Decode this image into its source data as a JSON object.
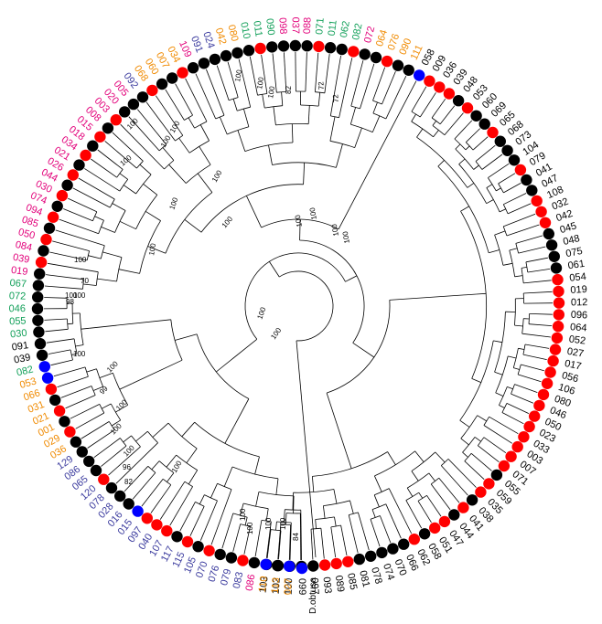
{
  "outgroup_label": "D.obtusa",
  "colors": {
    "black_label": "#000000",
    "pink_label": "#e2007a",
    "green_label": "#13a05a",
    "orange_label": "#f08a00",
    "blue_label": "#3b3b9e",
    "dot_black": "#000000",
    "dot_red": "#ff0000",
    "dot_blue": "#0000ff"
  },
  "tips": [
    {
      "label": "103",
      "color": "black",
      "dot": "black"
    },
    {
      "label": "102",
      "color": "black",
      "dot": "black"
    },
    {
      "label": "100",
      "color": "black",
      "dot": "black"
    },
    {
      "label": "099",
      "color": "black",
      "dot": "black"
    },
    {
      "label": "097",
      "color": "black",
      "dot": "black"
    },
    {
      "label": "093",
      "color": "black",
      "dot": "red"
    },
    {
      "label": "089",
      "color": "black",
      "dot": "red"
    },
    {
      "label": "085",
      "color": "black",
      "dot": "red"
    },
    {
      "label": "081",
      "color": "black",
      "dot": "black"
    },
    {
      "label": "078",
      "color": "black",
      "dot": "black"
    },
    {
      "label": "074",
      "color": "black",
      "dot": "black"
    },
    {
      "label": "070",
      "color": "black",
      "dot": "black"
    },
    {
      "label": "066",
      "color": "black",
      "dot": "black"
    },
    {
      "label": "062",
      "color": "black",
      "dot": "red"
    },
    {
      "label": "058",
      "color": "black",
      "dot": "black"
    },
    {
      "label": "051",
      "color": "black",
      "dot": "red"
    },
    {
      "label": "047",
      "color": "black",
      "dot": "red"
    },
    {
      "label": "044",
      "color": "black",
      "dot": "black"
    },
    {
      "label": "041",
      "color": "black",
      "dot": "red"
    },
    {
      "label": "038",
      "color": "black",
      "dot": "black"
    },
    {
      "label": "035",
      "color": "black",
      "dot": "red"
    },
    {
      "label": "059",
      "color": "black",
      "dot": "red"
    },
    {
      "label": "055",
      "color": "black",
      "dot": "black"
    },
    {
      "label": "071",
      "color": "black",
      "dot": "red"
    },
    {
      "label": "007",
      "color": "black",
      "dot": "red"
    },
    {
      "label": "003",
      "color": "black",
      "dot": "red"
    },
    {
      "label": "033",
      "color": "black",
      "dot": "red"
    },
    {
      "label": "023",
      "color": "black",
      "dot": "red"
    },
    {
      "label": "050",
      "color": "black",
      "dot": "red"
    },
    {
      "label": "046",
      "color": "black",
      "dot": "red"
    },
    {
      "label": "080",
      "color": "black",
      "dot": "red"
    },
    {
      "label": "106",
      "color": "black",
      "dot": "red"
    },
    {
      "label": "056",
      "color": "black",
      "dot": "red"
    },
    {
      "label": "017",
      "color": "black",
      "dot": "red"
    },
    {
      "label": "027",
      "color": "black",
      "dot": "red"
    },
    {
      "label": "052",
      "color": "black",
      "dot": "red"
    },
    {
      "label": "064",
      "color": "black",
      "dot": "red"
    },
    {
      "label": "096",
      "color": "black",
      "dot": "red"
    },
    {
      "label": "012",
      "color": "black",
      "dot": "red"
    },
    {
      "label": "019",
      "color": "black",
      "dot": "red"
    },
    {
      "label": "054",
      "color": "black",
      "dot": "red"
    },
    {
      "label": "061",
      "color": "black",
      "dot": "black"
    },
    {
      "label": "075",
      "color": "black",
      "dot": "black"
    },
    {
      "label": "048",
      "color": "black",
      "dot": "black"
    },
    {
      "label": "045",
      "color": "black",
      "dot": "black"
    },
    {
      "label": "042",
      "color": "black",
      "dot": "red"
    },
    {
      "label": "032",
      "color": "black",
      "dot": "red"
    },
    {
      "label": "108",
      "color": "black",
      "dot": "red"
    },
    {
      "label": "047",
      "color": "black",
      "dot": "black"
    },
    {
      "label": "041",
      "color": "black",
      "dot": "black"
    },
    {
      "label": "079",
      "color": "black",
      "dot": "red"
    },
    {
      "label": "104",
      "color": "black",
      "dot": "black"
    },
    {
      "label": "073",
      "color": "black",
      "dot": "black"
    },
    {
      "label": "068",
      "color": "black",
      "dot": "black"
    },
    {
      "label": "065",
      "color": "black",
      "dot": "red"
    },
    {
      "label": "069",
      "color": "black",
      "dot": "black"
    },
    {
      "label": "060",
      "color": "black",
      "dot": "black"
    },
    {
      "label": "053",
      "color": "black",
      "dot": "red"
    },
    {
      "label": "048",
      "color": "black",
      "dot": "black"
    },
    {
      "label": "039",
      "color": "black",
      "dot": "red"
    },
    {
      "label": "036",
      "color": "black",
      "dot": "red"
    },
    {
      "label": "009",
      "color": "black",
      "dot": "red"
    },
    {
      "label": "058",
      "color": "black",
      "dot": "blue"
    },
    {
      "label": "111",
      "color": "orange",
      "dot": "black"
    },
    {
      "label": "090",
      "color": "orange",
      "dot": "black"
    },
    {
      "label": "076",
      "color": "orange",
      "dot": "red"
    },
    {
      "label": "064",
      "color": "orange",
      "dot": "black"
    },
    {
      "label": "072",
      "color": "pink",
      "dot": "black"
    },
    {
      "label": "082",
      "color": "green",
      "dot": "red"
    },
    {
      "label": "062",
      "color": "green",
      "dot": "black"
    },
    {
      "label": "011",
      "color": "green",
      "dot": "black"
    },
    {
      "label": "071",
      "color": "green",
      "dot": "red"
    },
    {
      "label": "088",
      "color": "pink",
      "dot": "black"
    },
    {
      "label": "037",
      "color": "pink",
      "dot": "black"
    },
    {
      "label": "098",
      "color": "pink",
      "dot": "black"
    },
    {
      "label": "090",
      "color": "green",
      "dot": "black"
    },
    {
      "label": "011",
      "color": "green",
      "dot": "red"
    },
    {
      "label": "010",
      "color": "green",
      "dot": "black"
    },
    {
      "label": "080",
      "color": "orange",
      "dot": "black"
    },
    {
      "label": "042",
      "color": "orange",
      "dot": "black"
    },
    {
      "label": "024",
      "color": "blue",
      "dot": "black"
    },
    {
      "label": "091",
      "color": "blue",
      "dot": "black"
    },
    {
      "label": "109",
      "color": "pink",
      "dot": "black"
    },
    {
      "label": "034",
      "color": "orange",
      "dot": "red"
    },
    {
      "label": "007",
      "color": "orange",
      "dot": "black"
    },
    {
      "label": "060",
      "color": "orange",
      "dot": "black"
    },
    {
      "label": "068",
      "color": "orange",
      "dot": "red"
    },
    {
      "label": "092",
      "color": "blue",
      "dot": "black"
    },
    {
      "label": "005",
      "color": "pink",
      "dot": "black"
    },
    {
      "label": "020",
      "color": "pink",
      "dot": "black"
    },
    {
      "label": "003",
      "color": "pink",
      "dot": "red"
    },
    {
      "label": "008",
      "color": "pink",
      "dot": "black"
    },
    {
      "label": "015",
      "color": "pink",
      "dot": "red"
    },
    {
      "label": "018",
      "color": "pink",
      "dot": "black"
    },
    {
      "label": "034",
      "color": "pink",
      "dot": "red"
    },
    {
      "label": "021",
      "color": "pink",
      "dot": "black"
    },
    {
      "label": "026",
      "color": "pink",
      "dot": "red"
    },
    {
      "label": "044",
      "color": "pink",
      "dot": "black"
    },
    {
      "label": "030",
      "color": "pink",
      "dot": "red"
    },
    {
      "label": "074",
      "color": "pink",
      "dot": "black"
    },
    {
      "label": "094",
      "color": "pink",
      "dot": "red"
    },
    {
      "label": "085",
      "color": "pink",
      "dot": "black"
    },
    {
      "label": "050",
      "color": "pink",
      "dot": "red"
    },
    {
      "label": "084",
      "color": "pink",
      "dot": "black"
    },
    {
      "label": "039",
      "color": "pink",
      "dot": "red"
    },
    {
      "label": "019",
      "color": "pink",
      "dot": "black"
    },
    {
      "label": "067",
      "color": "green",
      "dot": "black"
    },
    {
      "label": "072",
      "color": "green",
      "dot": "black"
    },
    {
      "label": "046",
      "color": "green",
      "dot": "black"
    },
    {
      "label": "055",
      "color": "green",
      "dot": "black"
    },
    {
      "label": "030",
      "color": "green",
      "dot": "black"
    },
    {
      "label": "091",
      "color": "black",
      "dot": "black"
    },
    {
      "label": "039",
      "color": "black",
      "dot": "black"
    },
    {
      "label": "082",
      "color": "green",
      "dot": "blue"
    },
    {
      "label": "053",
      "color": "orange",
      "dot": "blue"
    },
    {
      "label": "066",
      "color": "orange",
      "dot": "red"
    },
    {
      "label": "031",
      "color": "orange",
      "dot": "black"
    },
    {
      "label": "021",
      "color": "orange",
      "dot": "red"
    },
    {
      "label": "001",
      "color": "orange",
      "dot": "black"
    },
    {
      "label": "029",
      "color": "orange",
      "dot": "red"
    },
    {
      "label": "036",
      "color": "orange",
      "dot": "black"
    },
    {
      "label": "129",
      "color": "blue",
      "dot": "black"
    },
    {
      "label": "086",
      "color": "blue",
      "dot": "black"
    },
    {
      "label": "065",
      "color": "blue",
      "dot": "black"
    },
    {
      "label": "120",
      "color": "blue",
      "dot": "red"
    },
    {
      "label": "078",
      "color": "blue",
      "dot": "black"
    },
    {
      "label": "028",
      "color": "blue",
      "dot": "black"
    },
    {
      "label": "016",
      "color": "blue",
      "dot": "black"
    },
    {
      "label": "015",
      "color": "blue",
      "dot": "blue"
    },
    {
      "label": "097",
      "color": "blue",
      "dot": "red"
    },
    {
      "label": "040",
      "color": "blue",
      "dot": "red"
    },
    {
      "label": "107",
      "color": "blue",
      "dot": "red"
    },
    {
      "label": "117",
      "color": "blue",
      "dot": "black"
    },
    {
      "label": "115",
      "color": "blue",
      "dot": "red"
    },
    {
      "label": "105",
      "color": "blue",
      "dot": "black"
    },
    {
      "label": "070",
      "color": "blue",
      "dot": "red"
    },
    {
      "label": "076",
      "color": "blue",
      "dot": "black"
    },
    {
      "label": "079",
      "color": "blue",
      "dot": "black"
    },
    {
      "label": "083",
      "color": "blue",
      "dot": "red"
    },
    {
      "label": "086",
      "color": "pink",
      "dot": "black"
    },
    {
      "label": "110",
      "color": "orange",
      "dot": "blue"
    },
    {
      "label": "113",
      "color": "orange",
      "dot": "black"
    },
    {
      "label": "027",
      "color": "orange",
      "dot": "blue"
    },
    {
      "label": "D.obtusa",
      "color": "black",
      "dot": "blue"
    }
  ],
  "bootstrap_values": [
    "100",
    "100",
    "100",
    "100",
    "100",
    "100",
    "100",
    "70",
    "100",
    "100",
    "98",
    "100",
    "100",
    "99",
    "100",
    "100",
    "100",
    "96",
    "82",
    "100",
    "100",
    "100",
    "100",
    "100",
    "84",
    "100",
    "100",
    "100",
    "100",
    "100",
    "100",
    "100",
    "82",
    "72",
    "72",
    "100",
    "100",
    "100",
    "100"
  ]
}
